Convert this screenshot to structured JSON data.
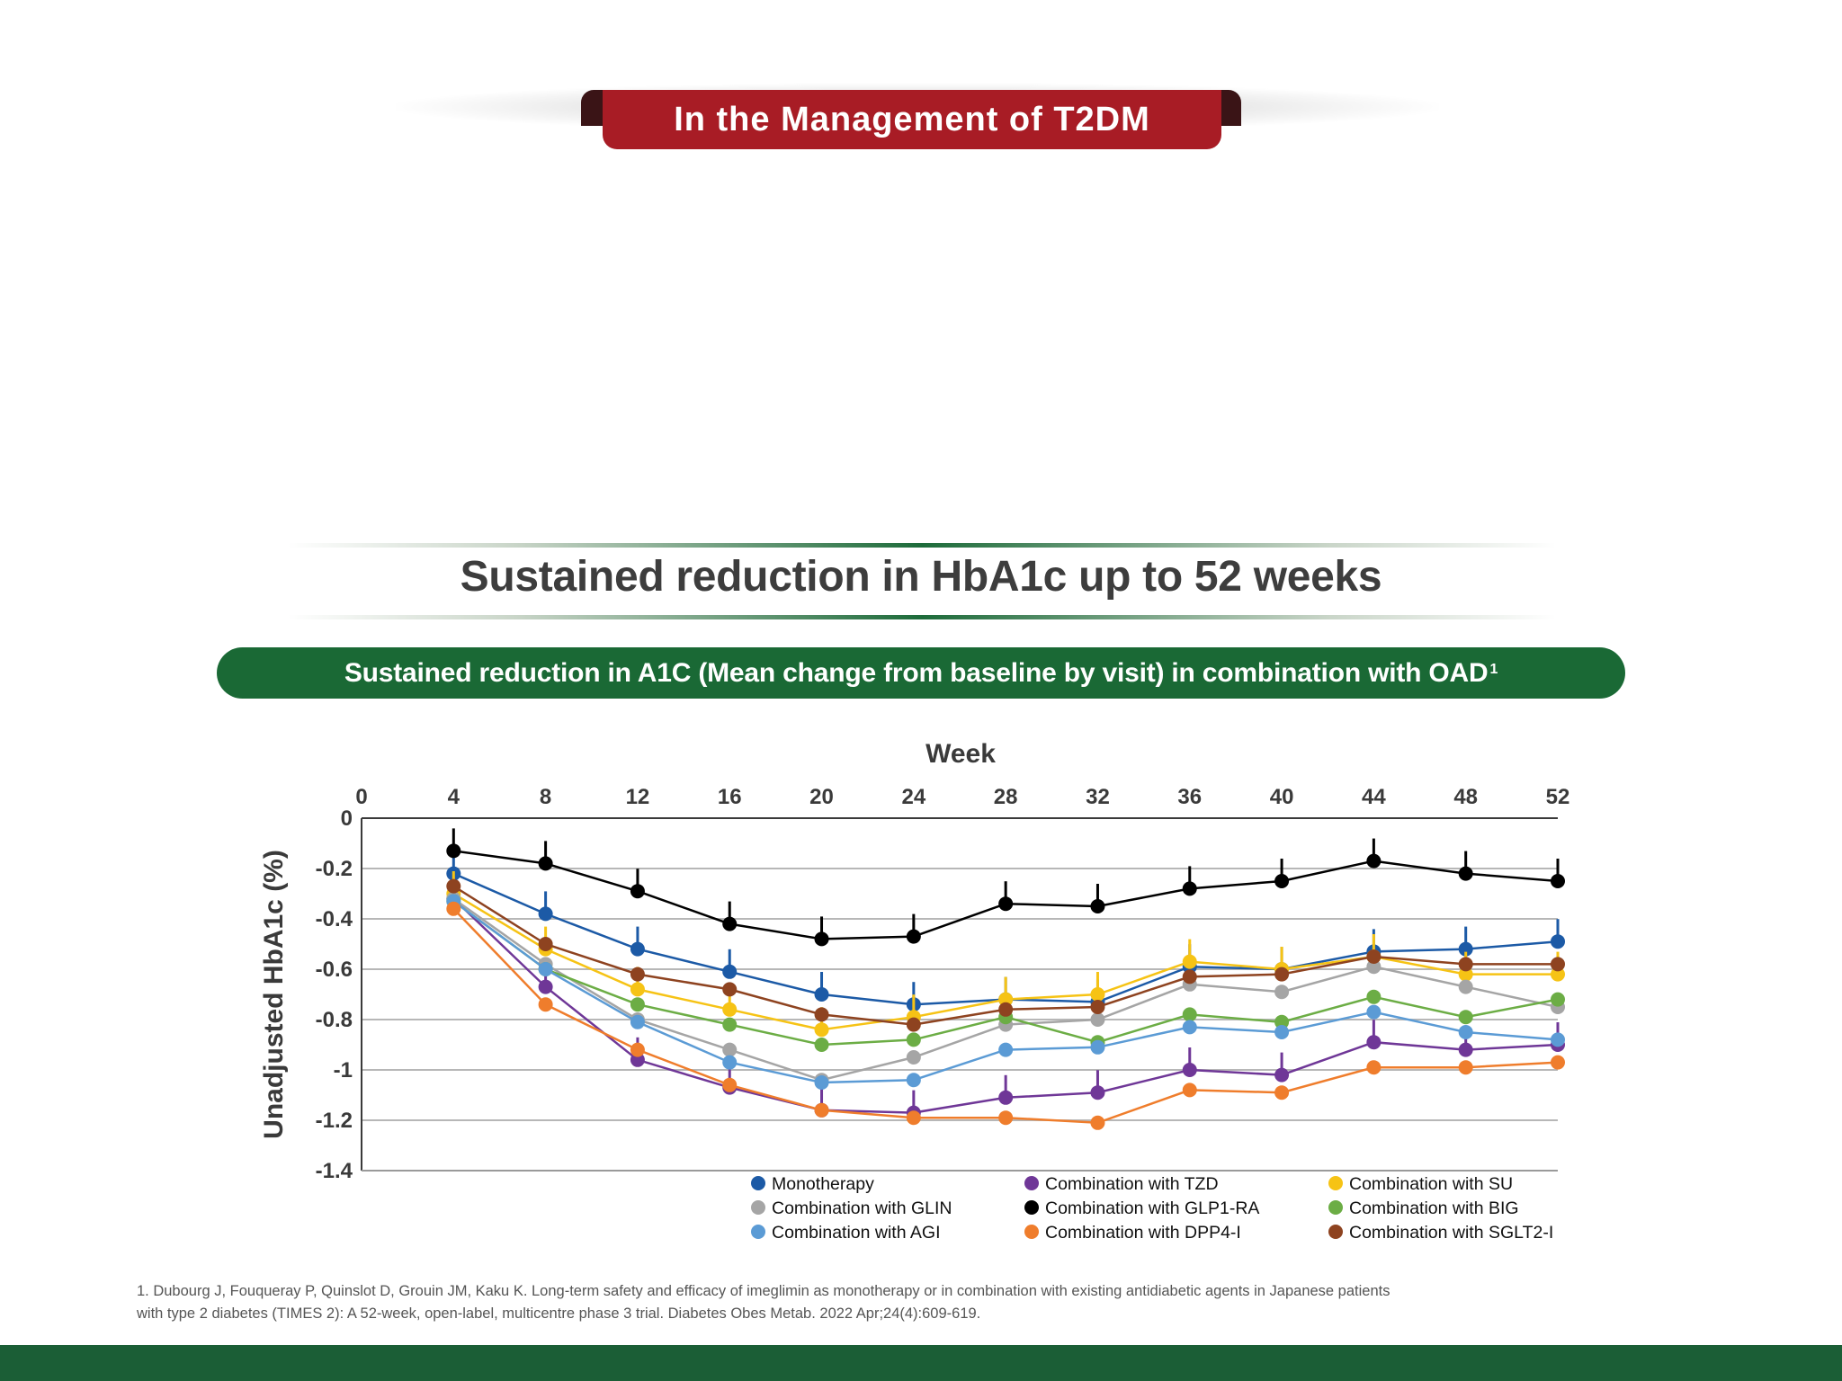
{
  "header": {
    "tab_label": "In the Management of T2DM"
  },
  "heading": {
    "title": "Sustained reduction in HbA1c up to 52 weeks"
  },
  "subheading": {
    "text": "Sustained reduction in A1C (Mean change from baseline by visit) in combination with OAD",
    "sup": "1"
  },
  "footnote": {
    "line1": "1. Dubourg J, Fouqueray P, Quinslot D, Grouin JM, Kaku K. Long-term safety and efficacy of imeglimin as monotherapy or in combination with existing antidiabetic agents in Japanese patients",
    "line2": "with type 2 diabetes (TIMES 2): A 52-week, open-label, multicentre phase 3 trial. Diabetes Obes Metab. 2022 Apr;24(4):609-619."
  },
  "chart_data": {
    "type": "line",
    "title": "",
    "xlabel": "Week",
    "ylabel": "Unadjusted HbA1c (%)",
    "x_ticks": [
      0,
      4,
      8,
      12,
      16,
      20,
      24,
      28,
      32,
      36,
      40,
      44,
      48,
      52
    ],
    "y_ticks": [
      0,
      -0.2,
      -0.4,
      -0.6,
      -0.8,
      -1,
      -1.2,
      -1.4
    ],
    "y_tick_labels": [
      "0",
      "-0.2",
      "-0.4",
      "-0.6",
      "-0.8",
      "-1",
      "-1.2",
      "-1.4"
    ],
    "xlim": [
      0,
      52
    ],
    "ylim": [
      -1.4,
      0
    ],
    "x_axis_position": "top",
    "grid": true,
    "error_bars": true,
    "legend_position": "bottom-right",
    "x": [
      4,
      8,
      12,
      16,
      20,
      24,
      28,
      32,
      36,
      40,
      44,
      48,
      52
    ],
    "series": [
      {
        "name": "Monotherapy",
        "color": "#1c5aa6",
        "values": [
          -0.22,
          -0.38,
          -0.52,
          -0.61,
          -0.7,
          -0.74,
          -0.72,
          -0.73,
          -0.59,
          -0.6,
          -0.53,
          -0.52,
          -0.49
        ],
        "errbar": true
      },
      {
        "name": "Combination with TZD",
        "color": "#6f3797",
        "values": [
          -0.32,
          -0.67,
          -0.96,
          -1.07,
          -1.16,
          -1.17,
          -1.11,
          -1.09,
          -1.0,
          -1.02,
          -0.89,
          -0.92,
          -0.9
        ],
        "errbar": true
      },
      {
        "name": "Combination with SU",
        "color": "#f6c315",
        "values": [
          -0.3,
          -0.52,
          -0.68,
          -0.76,
          -0.84,
          -0.79,
          -0.72,
          -0.7,
          -0.57,
          -0.6,
          -0.55,
          -0.62,
          -0.62
        ],
        "errbar": true
      },
      {
        "name": "Combination with GLIN",
        "color": "#a5a5a5",
        "values": [
          -0.32,
          -0.58,
          -0.8,
          -0.92,
          -1.04,
          -0.95,
          -0.82,
          -0.8,
          -0.66,
          -0.69,
          -0.59,
          -0.67,
          -0.75
        ],
        "errbar": false
      },
      {
        "name": "Combination with GLP1-RA",
        "color": "#000000",
        "values": [
          -0.13,
          -0.18,
          -0.29,
          -0.42,
          -0.48,
          -0.47,
          -0.34,
          -0.35,
          -0.28,
          -0.25,
          -0.17,
          -0.22,
          -0.25
        ],
        "errbar": true
      },
      {
        "name": "Combination with BIG",
        "color": "#6cad45",
        "values": [
          -0.33,
          -0.6,
          -0.74,
          -0.82,
          -0.9,
          -0.88,
          -0.79,
          -0.89,
          -0.78,
          -0.81,
          -0.71,
          -0.79,
          -0.72
        ],
        "errbar": false
      },
      {
        "name": "Combination with AGI",
        "color": "#5b9bd5",
        "values": [
          -0.33,
          -0.6,
          -0.81,
          -0.97,
          -1.05,
          -1.04,
          -0.92,
          -0.91,
          -0.83,
          -0.85,
          -0.77,
          -0.85,
          -0.88
        ],
        "errbar": false
      },
      {
        "name": "Combination with DPP4-I",
        "color": "#ef7d2c",
        "values": [
          -0.36,
          -0.74,
          -0.92,
          -1.06,
          -1.16,
          -1.19,
          -1.19,
          -1.21,
          -1.08,
          -1.09,
          -0.99,
          -0.99,
          -0.97
        ],
        "errbar": false
      },
      {
        "name": "Combination with SGLT2-I",
        "color": "#8e4320",
        "values": [
          -0.27,
          -0.5,
          -0.62,
          -0.68,
          -0.78,
          -0.82,
          -0.76,
          -0.75,
          -0.63,
          -0.62,
          -0.55,
          -0.58,
          -0.58
        ],
        "errbar": false
      }
    ],
    "legend": [
      [
        "Monotherapy",
        "Combination with TZD",
        "Combination with SU"
      ],
      [
        "Combination with GLIN",
        "Combination with GLP1-RA",
        "Combination with BIG"
      ],
      [
        "Combination with AGI",
        "Combination with DPP4-I",
        "Combination with SGLT2-I"
      ]
    ]
  }
}
